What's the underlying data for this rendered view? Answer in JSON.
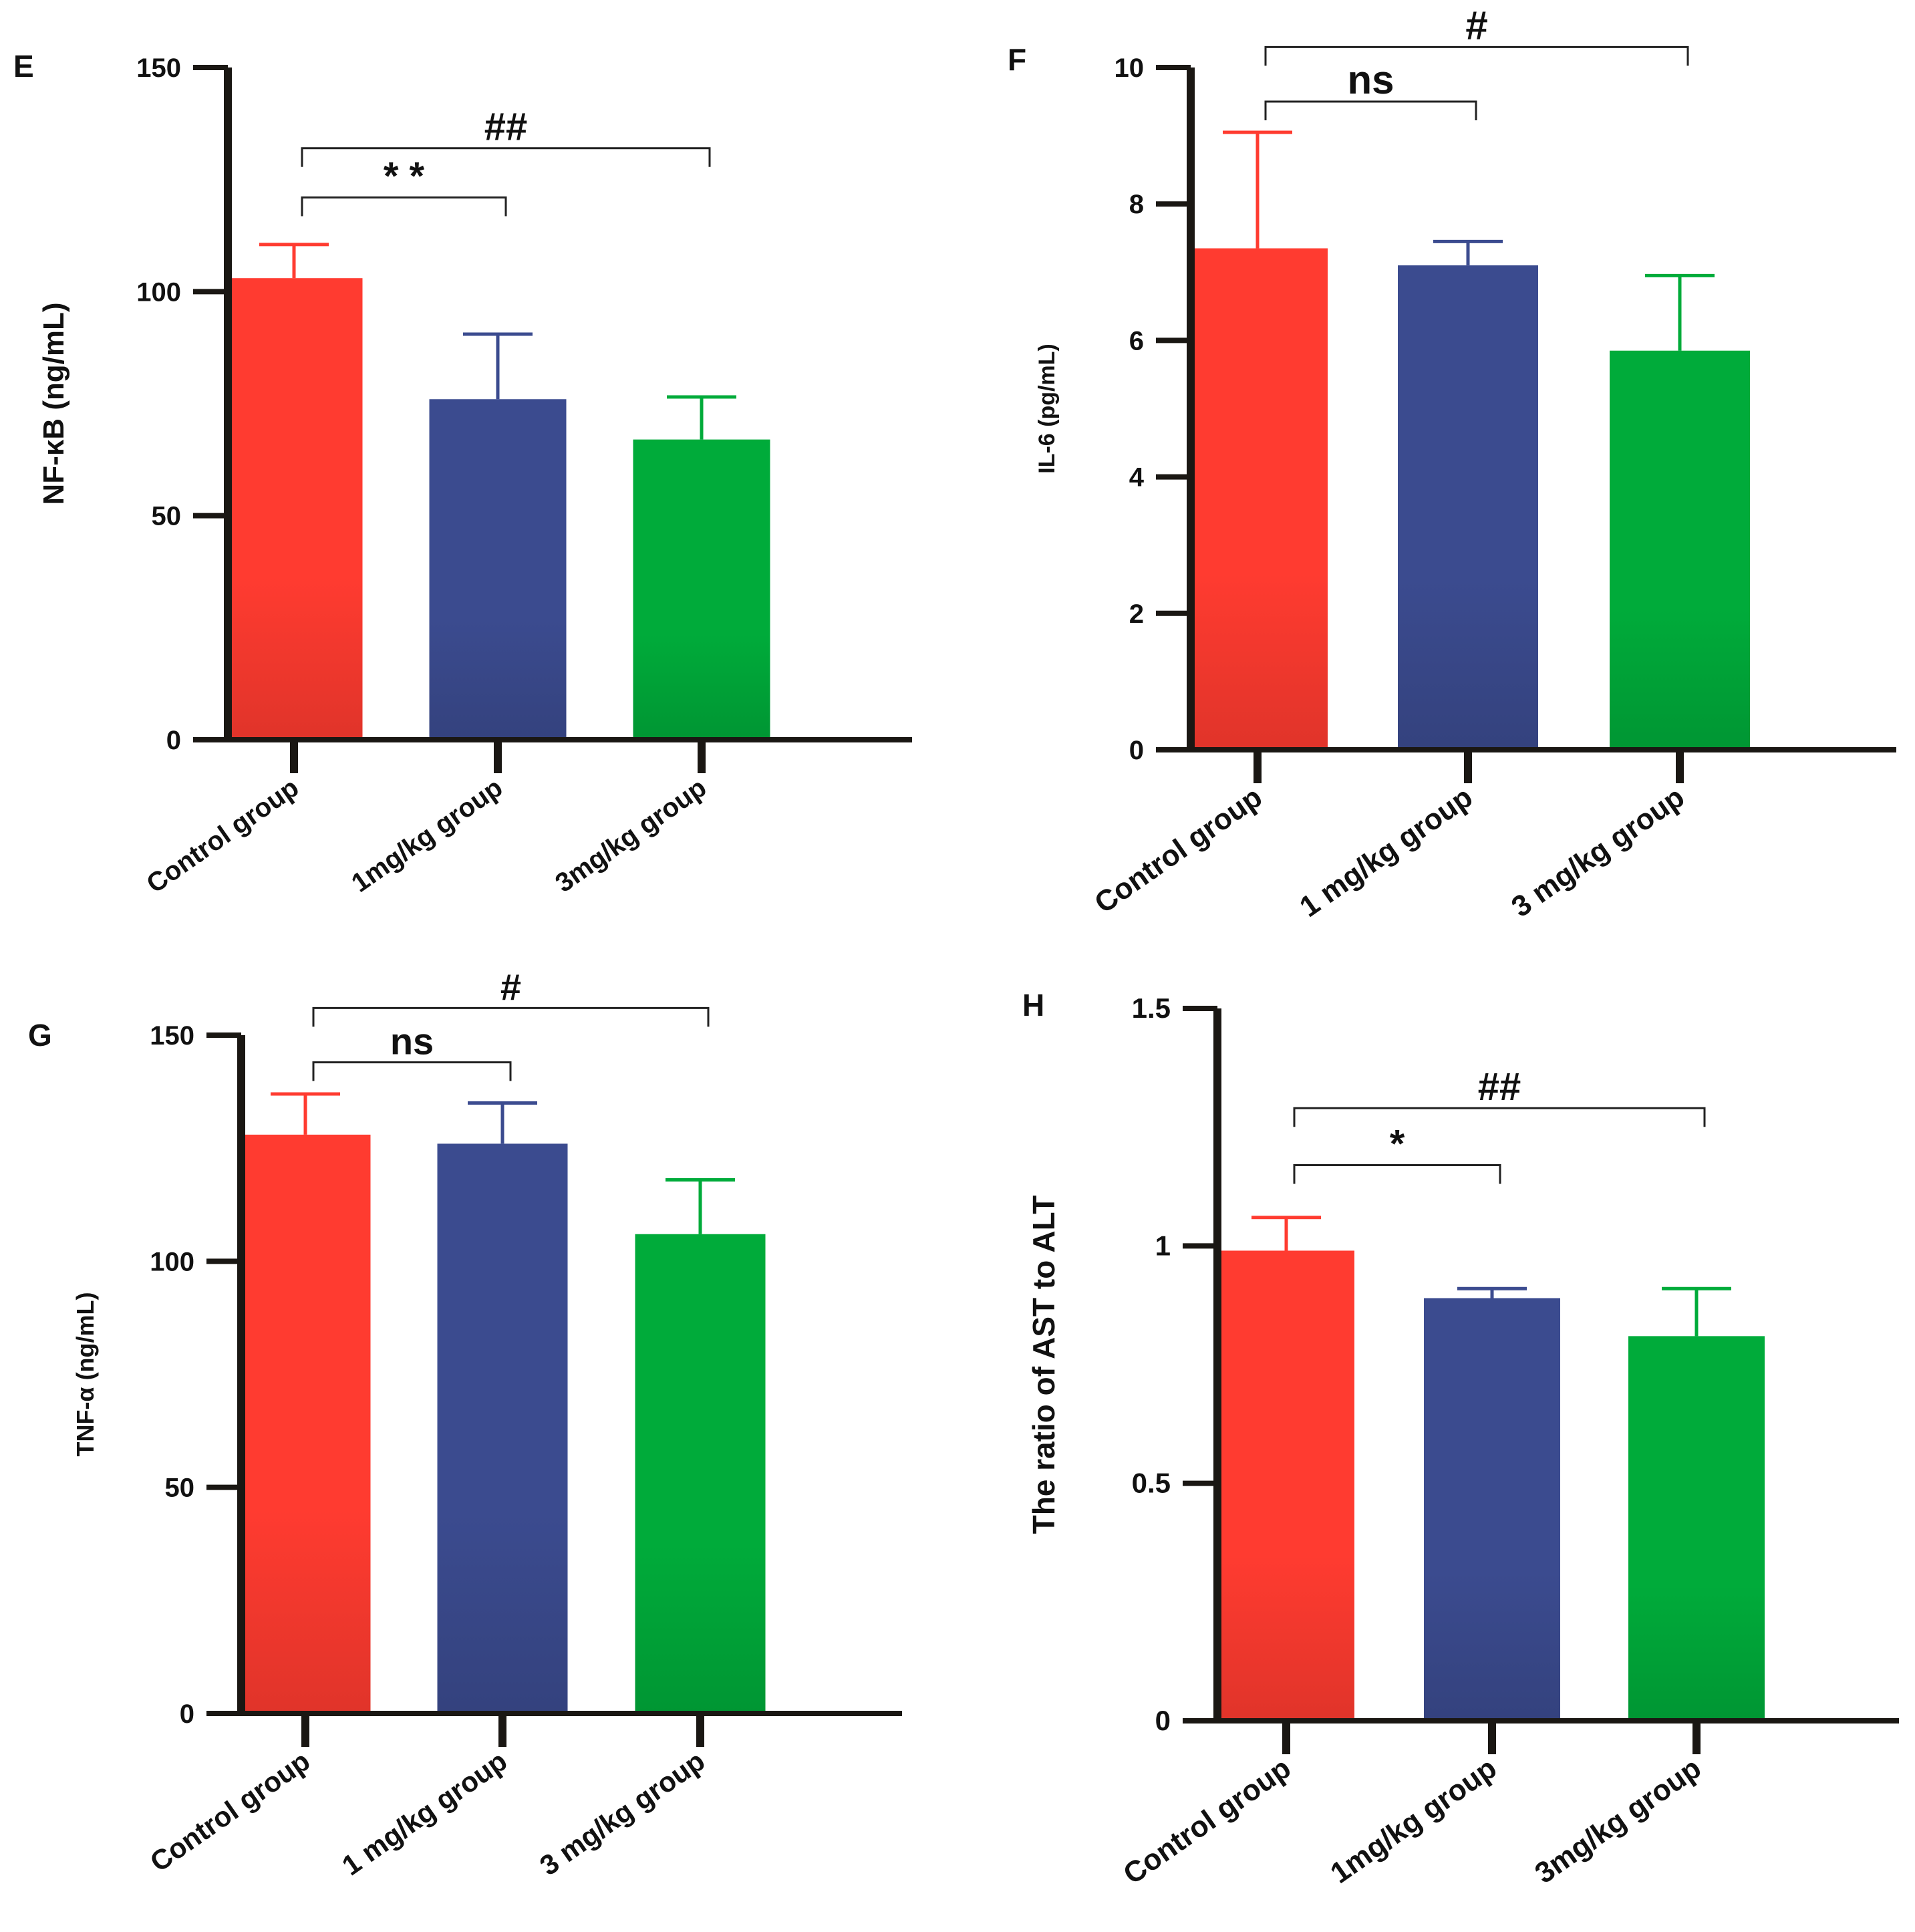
{
  "colors": {
    "control": "#ff3b30",
    "low": "#3b4b8f",
    "high": "#00ab3a",
    "axis": "#1a1713",
    "text": "#111111"
  },
  "chart_data": [
    {
      "panel": "E",
      "type": "bar",
      "ylabel": "NF-κB (ng/mL)",
      "ylim": [
        0,
        150
      ],
      "yticks": [
        0,
        50,
        100,
        150
      ],
      "ytick_labels": [
        "0",
        "50",
        "100",
        "150"
      ],
      "categories": [
        "Control group",
        "1mg/kg group",
        "3mg/kg group"
      ],
      "values": [
        103,
        76,
        67
      ],
      "errors": [
        7.5,
        14.5,
        9.5
      ],
      "significance": [
        {
          "from": 0,
          "to": 1,
          "label": "* *",
          "y": 121
        },
        {
          "from": 0,
          "to": 2,
          "label": "##",
          "y": 132
        }
      ]
    },
    {
      "panel": "F",
      "type": "bar",
      "ylabel": "IL-6 (pg/mL)",
      "ylim": [
        0,
        10
      ],
      "yticks": [
        0,
        2,
        4,
        6,
        8,
        10
      ],
      "ytick_labels": [
        "0",
        "2",
        "4",
        "6",
        "8",
        "10"
      ],
      "categories": [
        "Control group",
        "1 mg/kg group",
        "3 mg/kg group"
      ],
      "values": [
        7.35,
        7.1,
        5.85
      ],
      "errors": [
        1.7,
        0.35,
        1.1
      ],
      "significance": [
        {
          "from": 0,
          "to": 1,
          "label": "ns",
          "y": 9.5
        },
        {
          "from": 0,
          "to": 2,
          "label": "#",
          "y": 10.3
        }
      ]
    },
    {
      "panel": "G",
      "type": "bar",
      "ylabel": "TNF-α (ng/mL)",
      "ylim": [
        0,
        150
      ],
      "yticks": [
        0,
        50,
        100,
        150
      ],
      "ytick_labels": [
        "0",
        "50",
        "100",
        "150"
      ],
      "categories": [
        "Control group",
        "1 mg/kg group",
        "3 mg/kg group"
      ],
      "values": [
        128,
        126,
        106
      ],
      "errors": [
        9,
        9,
        12
      ],
      "significance": [
        {
          "from": 0,
          "to": 1,
          "label": "ns",
          "y": 144
        },
        {
          "from": 0,
          "to": 2,
          "label": "#",
          "y": 156
        }
      ]
    },
    {
      "panel": "H",
      "type": "bar",
      "ylabel": "The ratio of AST to ALT",
      "ylim": [
        0,
        1.5
      ],
      "yticks": [
        0,
        0.5,
        1,
        1.5
      ],
      "ytick_labels": [
        "0",
        "0.5",
        "1",
        "1.5"
      ],
      "categories": [
        "Control group",
        "1mg/kg group",
        "3mg/kg group"
      ],
      "values": [
        0.99,
        0.89,
        0.81
      ],
      "errors": [
        0.07,
        0.02,
        0.1
      ],
      "significance": [
        {
          "from": 0,
          "to": 1,
          "label": "*",
          "y": 1.17
        },
        {
          "from": 0,
          "to": 2,
          "label": "##",
          "y": 1.29
        }
      ]
    }
  ]
}
